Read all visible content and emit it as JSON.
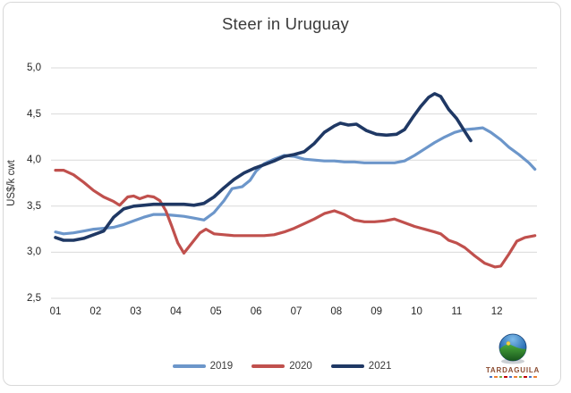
{
  "chart_data": {
    "type": "line",
    "title": "Steer in Uruguay",
    "xlabel": "",
    "ylabel": "US$/k cwt",
    "x_unit": "month of year (weekly data points)",
    "xlim": [
      1,
      13
    ],
    "ylim": [
      2.5,
      5.0
    ],
    "grid": true,
    "legend_position": "bottom",
    "decimal_style": "comma",
    "x_ticks": [
      "01",
      "02",
      "03",
      "04",
      "05",
      "06",
      "07",
      "08",
      "09",
      "10",
      "11",
      "12"
    ],
    "x_tick_values": [
      1,
      2,
      3,
      4,
      5,
      6,
      7,
      8,
      9,
      10,
      11,
      12
    ],
    "y_ticks": [
      "2,5",
      "3,0",
      "3,5",
      "4,0",
      "4,5",
      "5,0"
    ],
    "y_tick_values": [
      2.5,
      3.0,
      3.5,
      4.0,
      4.5,
      5.0
    ],
    "series": [
      {
        "name": "2019",
        "color": "#6C96CA",
        "points": [
          [
            1.0,
            3.22
          ],
          [
            1.2,
            3.2
          ],
          [
            1.45,
            3.21
          ],
          [
            1.7,
            3.23
          ],
          [
            1.95,
            3.25
          ],
          [
            2.2,
            3.26
          ],
          [
            2.45,
            3.27
          ],
          [
            2.7,
            3.3
          ],
          [
            2.95,
            3.34
          ],
          [
            3.2,
            3.38
          ],
          [
            3.45,
            3.41
          ],
          [
            3.7,
            3.41
          ],
          [
            3.95,
            3.4
          ],
          [
            4.2,
            3.39
          ],
          [
            4.45,
            3.37
          ],
          [
            4.7,
            3.35
          ],
          [
            4.95,
            3.43
          ],
          [
            5.2,
            3.56
          ],
          [
            5.4,
            3.69
          ],
          [
            5.65,
            3.71
          ],
          [
            5.85,
            3.78
          ],
          [
            6.0,
            3.88
          ],
          [
            6.2,
            3.96
          ],
          [
            6.45,
            4.01
          ],
          [
            6.7,
            4.05
          ],
          [
            6.95,
            4.04
          ],
          [
            7.2,
            4.01
          ],
          [
            7.45,
            4.0
          ],
          [
            7.7,
            3.99
          ],
          [
            7.95,
            3.99
          ],
          [
            8.2,
            3.98
          ],
          [
            8.45,
            3.98
          ],
          [
            8.7,
            3.97
          ],
          [
            8.95,
            3.97
          ],
          [
            9.2,
            3.97
          ],
          [
            9.45,
            3.97
          ],
          [
            9.7,
            3.99
          ],
          [
            9.95,
            4.05
          ],
          [
            10.2,
            4.12
          ],
          [
            10.45,
            4.19
          ],
          [
            10.7,
            4.25
          ],
          [
            10.95,
            4.3
          ],
          [
            11.2,
            4.33
          ],
          [
            11.45,
            4.34
          ],
          [
            11.65,
            4.35
          ],
          [
            11.85,
            4.3
          ],
          [
            12.1,
            4.22
          ],
          [
            12.3,
            4.14
          ],
          [
            12.55,
            4.06
          ],
          [
            12.8,
            3.97
          ],
          [
            12.95,
            3.9
          ]
        ]
      },
      {
        "name": "2020",
        "color": "#C0504D",
        "points": [
          [
            1.0,
            3.89
          ],
          [
            1.2,
            3.89
          ],
          [
            1.45,
            3.84
          ],
          [
            1.7,
            3.76
          ],
          [
            1.95,
            3.67
          ],
          [
            2.2,
            3.6
          ],
          [
            2.45,
            3.55
          ],
          [
            2.6,
            3.51
          ],
          [
            2.8,
            3.6
          ],
          [
            2.95,
            3.61
          ],
          [
            3.1,
            3.58
          ],
          [
            3.3,
            3.61
          ],
          [
            3.45,
            3.6
          ],
          [
            3.6,
            3.56
          ],
          [
            3.75,
            3.45
          ],
          [
            3.9,
            3.28
          ],
          [
            4.05,
            3.1
          ],
          [
            4.2,
            2.99
          ],
          [
            4.4,
            3.1
          ],
          [
            4.6,
            3.21
          ],
          [
            4.75,
            3.25
          ],
          [
            4.95,
            3.2
          ],
          [
            5.2,
            3.19
          ],
          [
            5.45,
            3.18
          ],
          [
            5.7,
            3.18
          ],
          [
            5.95,
            3.18
          ],
          [
            6.2,
            3.18
          ],
          [
            6.45,
            3.19
          ],
          [
            6.7,
            3.22
          ],
          [
            6.95,
            3.26
          ],
          [
            7.2,
            3.31
          ],
          [
            7.45,
            3.36
          ],
          [
            7.7,
            3.42
          ],
          [
            7.95,
            3.45
          ],
          [
            8.2,
            3.41
          ],
          [
            8.45,
            3.35
          ],
          [
            8.7,
            3.33
          ],
          [
            8.95,
            3.33
          ],
          [
            9.2,
            3.34
          ],
          [
            9.45,
            3.36
          ],
          [
            9.7,
            3.32
          ],
          [
            9.95,
            3.28
          ],
          [
            10.2,
            3.25
          ],
          [
            10.45,
            3.22
          ],
          [
            10.6,
            3.2
          ],
          [
            10.8,
            3.13
          ],
          [
            11.0,
            3.1
          ],
          [
            11.2,
            3.05
          ],
          [
            11.45,
            2.96
          ],
          [
            11.7,
            2.88
          ],
          [
            11.95,
            2.84
          ],
          [
            12.1,
            2.85
          ],
          [
            12.3,
            2.98
          ],
          [
            12.5,
            3.12
          ],
          [
            12.7,
            3.16
          ],
          [
            12.95,
            3.18
          ]
        ]
      },
      {
        "name": "2021",
        "color": "#1F3864",
        "points": [
          [
            1.0,
            3.16
          ],
          [
            1.2,
            3.13
          ],
          [
            1.45,
            3.13
          ],
          [
            1.7,
            3.15
          ],
          [
            1.95,
            3.19
          ],
          [
            2.2,
            3.23
          ],
          [
            2.45,
            3.38
          ],
          [
            2.7,
            3.47
          ],
          [
            2.95,
            3.5
          ],
          [
            3.2,
            3.51
          ],
          [
            3.45,
            3.52
          ],
          [
            3.7,
            3.52
          ],
          [
            3.95,
            3.52
          ],
          [
            4.2,
            3.52
          ],
          [
            4.45,
            3.51
          ],
          [
            4.7,
            3.53
          ],
          [
            4.95,
            3.6
          ],
          [
            5.2,
            3.7
          ],
          [
            5.45,
            3.79
          ],
          [
            5.7,
            3.86
          ],
          [
            5.95,
            3.91
          ],
          [
            6.2,
            3.95
          ],
          [
            6.45,
            3.99
          ],
          [
            6.7,
            4.04
          ],
          [
            6.95,
            4.06
          ],
          [
            7.2,
            4.09
          ],
          [
            7.45,
            4.18
          ],
          [
            7.7,
            4.3
          ],
          [
            7.95,
            4.37
          ],
          [
            8.1,
            4.4
          ],
          [
            8.3,
            4.38
          ],
          [
            8.5,
            4.39
          ],
          [
            8.75,
            4.32
          ],
          [
            9.0,
            4.28
          ],
          [
            9.25,
            4.27
          ],
          [
            9.5,
            4.28
          ],
          [
            9.7,
            4.33
          ],
          [
            9.9,
            4.46
          ],
          [
            10.1,
            4.58
          ],
          [
            10.3,
            4.68
          ],
          [
            10.45,
            4.72
          ],
          [
            10.6,
            4.69
          ],
          [
            10.8,
            4.55
          ],
          [
            11.0,
            4.45
          ],
          [
            11.2,
            4.31
          ],
          [
            11.35,
            4.21
          ]
        ]
      }
    ]
  },
  "colors": {
    "gridline": "#D9D9D9",
    "axis_text": "#262626",
    "title_text": "#3A3A3A"
  },
  "logo": {
    "brand": "TARDAGUILA",
    "mark_colors": [
      "#4472C4",
      "#ED7D31",
      "#70AD47",
      "#C00000",
      "#4472C4",
      "#ED7D31",
      "#70AD47",
      "#C00000",
      "#4472C4",
      "#ED7D31"
    ]
  }
}
